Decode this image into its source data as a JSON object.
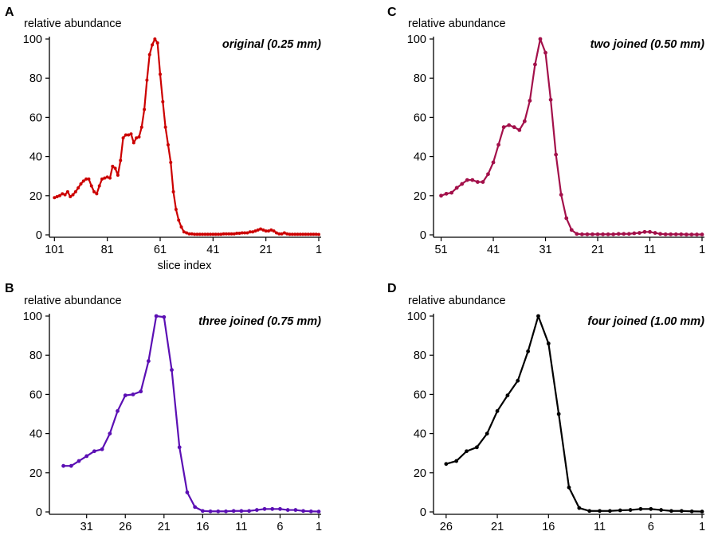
{
  "chart_data": [
    {
      "type": "line",
      "panel": "A",
      "title": "original (0.25 mm)",
      "ylabel": "relative abundance",
      "xlabel": "slice index",
      "color": "#cc0000",
      "xlim": [
        102,
        1
      ],
      "ylim": [
        0,
        100
      ],
      "xticks": [
        101,
        81,
        61,
        41,
        21,
        1
      ],
      "yticks": [
        0,
        20,
        40,
        60,
        80,
        100
      ],
      "x": [
        101,
        100,
        99,
        98,
        97,
        96,
        95,
        94,
        93,
        92,
        91,
        90,
        89,
        88,
        87,
        86,
        85,
        84,
        83,
        82,
        81,
        80,
        79,
        78,
        77,
        76,
        75,
        74,
        73,
        72,
        71,
        70,
        69,
        68,
        67,
        66,
        65,
        64,
        63,
        62,
        61,
        60,
        59,
        58,
        57,
        56,
        55,
        54,
        53,
        52,
        51,
        50,
        49,
        48,
        47,
        46,
        45,
        44,
        43,
        42,
        41,
        40,
        39,
        38,
        37,
        36,
        35,
        34,
        33,
        32,
        31,
        30,
        29,
        28,
        27,
        26,
        25,
        24,
        23,
        22,
        21,
        20,
        19,
        18,
        17,
        16,
        15,
        14,
        13,
        12,
        11,
        10,
        9,
        8,
        7,
        6,
        5,
        4,
        3,
        2,
        1
      ],
      "values": [
        19,
        19.5,
        20,
        21,
        20.5,
        22,
        19.5,
        20.5,
        22,
        24,
        26,
        27.5,
        28.5,
        28.5,
        25,
        22,
        21,
        25,
        28.5,
        29,
        29.5,
        29,
        35,
        34,
        30.5,
        38,
        49.5,
        51,
        51,
        51.5,
        47,
        49.5,
        50,
        55,
        64,
        79,
        92,
        97,
        100,
        98,
        82,
        68,
        55,
        46,
        37,
        22,
        13,
        7.5,
        4,
        1.5,
        1,
        0.5,
        0.5,
        0.3,
        0.3,
        0.3,
        0.3,
        0.3,
        0.3,
        0.3,
        0.3,
        0.3,
        0.3,
        0.3,
        0.5,
        0.5,
        0.5,
        0.5,
        0.5,
        0.8,
        0.8,
        1,
        1,
        1,
        1.5,
        1.5,
        2,
        2.5,
        3,
        2.5,
        2,
        2,
        2.5,
        2,
        1,
        0.5,
        0.5,
        1,
        0.5,
        0.3,
        0.3,
        0.3,
        0.3,
        0.3,
        0.3,
        0.3,
        0.3,
        0.3,
        0.3,
        0.3,
        0.2
      ]
    },
    {
      "type": "line",
      "panel": "B",
      "title": "three joined (0.75 mm)",
      "ylabel": "relative abundance",
      "xlabel": "",
      "color": "#5b0fb4",
      "xlim": [
        35.5,
        1
      ],
      "ylim": [
        0,
        100
      ],
      "xticks": [
        31,
        26,
        21,
        16,
        11,
        6,
        1
      ],
      "yticks": [
        0,
        20,
        40,
        60,
        80,
        100
      ],
      "x": [
        34,
        33,
        32,
        31,
        30,
        29,
        28,
        27,
        26,
        25,
        24,
        23,
        22,
        21,
        20,
        19,
        18,
        17,
        16,
        15,
        14,
        13,
        12,
        11,
        10,
        9,
        8,
        7,
        6,
        5,
        4,
        3,
        2,
        1
      ],
      "values": [
        23.5,
        23.5,
        26,
        28.5,
        31,
        32,
        40,
        51.5,
        59.5,
        60,
        61.5,
        77,
        100,
        99.5,
        72.5,
        33,
        10,
        2.5,
        0.5,
        0.3,
        0.3,
        0.3,
        0.5,
        0.5,
        0.5,
        1,
        1.5,
        1.5,
        1.5,
        1,
        1,
        0.5,
        0.3,
        0.2
      ]
    },
    {
      "type": "line",
      "panel": "C",
      "title": "two joined (0.50 mm)",
      "ylabel": "relative abundance",
      "xlabel": "",
      "color": "#a3104a",
      "xlim": [
        52,
        1
      ],
      "ylim": [
        0,
        100
      ],
      "xticks": [
        51,
        41,
        31,
        21,
        11,
        1
      ],
      "yticks": [
        0,
        20,
        40,
        60,
        80,
        100
      ],
      "x": [
        51,
        50,
        49,
        48,
        47,
        46,
        45,
        44,
        43,
        42,
        41,
        40,
        39,
        38,
        37,
        36,
        35,
        34,
        33,
        32,
        31,
        30,
        29,
        28,
        27,
        26,
        25,
        24,
        23,
        22,
        21,
        20,
        19,
        18,
        17,
        16,
        15,
        14,
        13,
        12,
        11,
        10,
        9,
        8,
        7,
        6,
        5,
        4,
        3,
        2,
        1
      ],
      "values": [
        20,
        21,
        21.5,
        24,
        26,
        28,
        28,
        27,
        27,
        31,
        37,
        46,
        55,
        56,
        55,
        53.5,
        58,
        68.5,
        87,
        100,
        93,
        69,
        41,
        20.5,
        8.5,
        2.5,
        0.5,
        0.3,
        0.3,
        0.3,
        0.3,
        0.3,
        0.3,
        0.3,
        0.5,
        0.5,
        0.5,
        0.8,
        1,
        1.5,
        1.5,
        1,
        0.5,
        0.3,
        0.3,
        0.3,
        0.3,
        0.2,
        0.2,
        0.2,
        0.2
      ]
    },
    {
      "type": "line",
      "panel": "D",
      "title": "four joined (1.00 mm)",
      "ylabel": "relative abundance",
      "xlabel": "",
      "color": "#000000",
      "xlim": [
        27,
        1
      ],
      "ylim": [
        0,
        100
      ],
      "xticks": [
        26,
        21,
        16,
        11,
        6,
        1
      ],
      "yticks": [
        0,
        20,
        40,
        60,
        80,
        100
      ],
      "x": [
        26,
        25,
        24,
        23,
        22,
        21,
        20,
        19,
        18,
        17,
        16,
        15,
        14,
        13,
        12,
        11,
        10,
        9,
        8,
        7,
        6,
        5,
        4,
        3,
        2,
        1
      ],
      "values": [
        24.5,
        26,
        31,
        33,
        40,
        51.5,
        59.5,
        67,
        82,
        100,
        86,
        50,
        12.5,
        2,
        0.5,
        0.5,
        0.5,
        0.8,
        1,
        1.5,
        1.5,
        1,
        0.5,
        0.5,
        0.3,
        0.2
      ]
    }
  ]
}
